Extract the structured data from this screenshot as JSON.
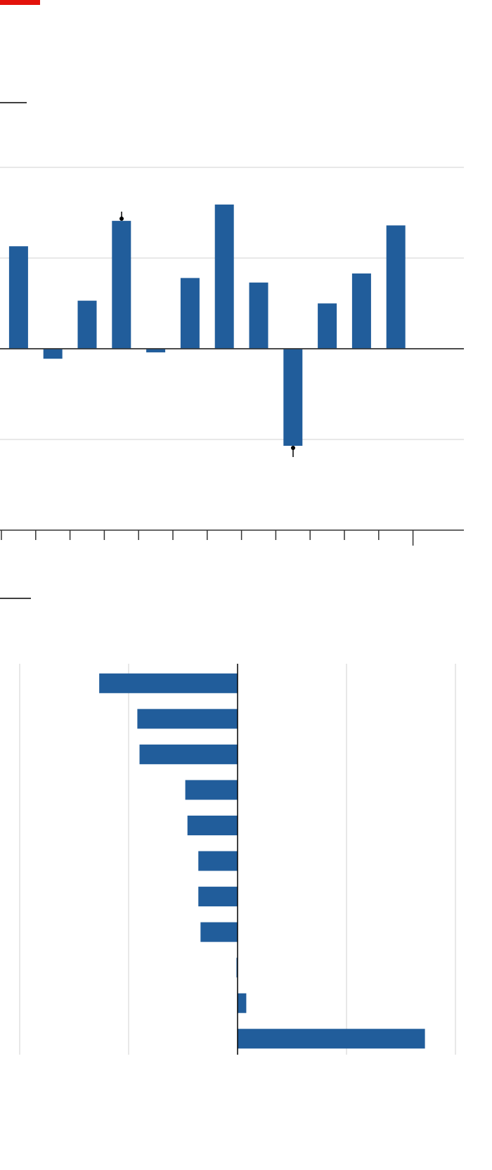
{
  "chart_data": [
    {
      "type": "bar",
      "categories": [
        null,
        null,
        null,
        null,
        null,
        null,
        null,
        null,
        null,
        null,
        null,
        null
      ],
      "values": [
        1.13,
        -0.11,
        0.53,
        1.41,
        -0.04,
        0.78,
        1.59,
        0.73,
        -1.07,
        0.5,
        0.83,
        1.36
      ],
      "color": "#215d9b",
      "ylim": [
        -2,
        2
      ],
      "yticks": [
        -2,
        -1,
        0,
        1,
        2
      ],
      "grid": true
    },
    {
      "type": "barh",
      "categories": [
        null,
        null,
        null,
        null,
        null,
        null,
        null,
        null,
        null,
        null,
        null
      ],
      "values": [
        -1.27,
        -0.92,
        -0.9,
        -0.48,
        -0.46,
        -0.36,
        -0.36,
        -0.34,
        -0.01,
        0.08,
        1.72
      ],
      "color": "#215d9b",
      "xlim": [
        -2,
        2
      ],
      "xticks": [
        -2,
        -1,
        0,
        1,
        2
      ],
      "grid": true
    }
  ]
}
